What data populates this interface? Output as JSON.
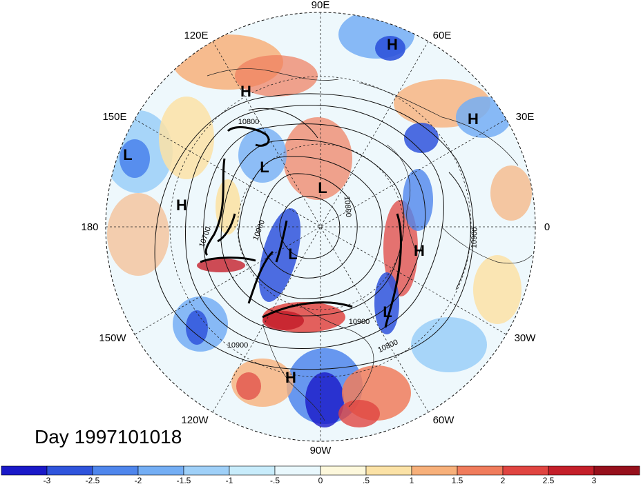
{
  "title": "Day 1997101018",
  "longitude_labels": {
    "lon_90e": "90E",
    "lon_120e": "120E",
    "lon_60e": "60E",
    "lon_150e": "150E",
    "lon_30e": "30E",
    "lon_180": "180",
    "lon_0": "0",
    "lon_150w": "150W",
    "lon_30w": "30W",
    "lon_120w": "120W",
    "lon_60w": "60W",
    "lon_90w": "90W"
  },
  "pressure_centers": [
    {
      "label": "H"
    },
    {
      "label": "H"
    },
    {
      "label": "H"
    },
    {
      "label": "H"
    },
    {
      "label": "H"
    },
    {
      "label": "H"
    },
    {
      "label": "L"
    },
    {
      "label": "L"
    },
    {
      "label": "L"
    },
    {
      "label": "L"
    },
    {
      "label": "L"
    }
  ],
  "contour_labels": [
    "10800",
    "10900",
    "10700",
    "10800",
    "10900",
    "10900",
    "10900",
    "10800"
  ],
  "colorbar": {
    "ticks": [
      "-3",
      "-2.5",
      "-2",
      "-1.5",
      "-1",
      "-.5",
      "0",
      ".5",
      "1",
      "1.5",
      "2",
      "2.5",
      "3"
    ],
    "colors": [
      "#1a19c8",
      "#2f54dc",
      "#4f86ec",
      "#74aef4",
      "#9fd0f8",
      "#c8ecfb",
      "#e9f8fd",
      "#fdf8dc",
      "#fbe2a6",
      "#f7b07a",
      "#f07c5c",
      "#e04541",
      "#c41f2a",
      "#96101c"
    ]
  }
}
